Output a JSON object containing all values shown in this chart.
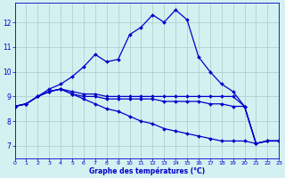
{
  "xlabel": "Graphe des températures (°C)",
  "xlim": [
    0,
    23
  ],
  "ylim": [
    6.5,
    12.8
  ],
  "yticks": [
    7,
    8,
    9,
    10,
    11,
    12
  ],
  "xticks": [
    0,
    1,
    2,
    3,
    4,
    5,
    6,
    7,
    8,
    9,
    10,
    11,
    12,
    13,
    14,
    15,
    16,
    17,
    18,
    19,
    20,
    21,
    22,
    23
  ],
  "background_color": "#d4f0f0",
  "line_color": "#0000cc",
  "grid_color": "#aacccc",
  "line1_y": [
    8.6,
    8.7,
    9.0,
    9.3,
    9.5,
    9.8,
    10.2,
    10.7,
    10.4,
    10.5,
    11.5,
    11.8,
    12.3,
    12.0,
    12.5,
    12.1,
    10.6,
    10.0,
    9.5,
    9.2,
    8.6,
    7.1,
    7.2,
    7.2
  ],
  "line2_y": [
    8.6,
    8.7,
    9.0,
    9.2,
    9.3,
    9.2,
    9.1,
    9.1,
    9.0,
    9.0,
    9.0,
    9.0,
    9.0,
    9.0,
    9.0,
    9.0,
    9.0,
    9.0,
    9.0,
    9.0,
    8.6,
    7.1,
    7.2,
    7.2
  ],
  "line3_y": [
    8.6,
    8.7,
    9.0,
    9.2,
    9.3,
    9.1,
    9.0,
    9.0,
    8.9,
    8.9,
    8.9,
    8.9,
    8.9,
    8.8,
    8.8,
    8.8,
    8.8,
    8.7,
    8.7,
    8.6,
    8.6,
    7.1,
    7.2,
    7.2
  ],
  "line4_y": [
    8.6,
    8.7,
    9.0,
    9.2,
    9.3,
    9.1,
    8.9,
    8.7,
    8.5,
    8.4,
    8.2,
    8.0,
    7.9,
    7.7,
    7.6,
    7.5,
    7.4,
    7.3,
    7.2,
    7.2,
    7.2,
    7.1,
    7.2,
    7.2
  ]
}
